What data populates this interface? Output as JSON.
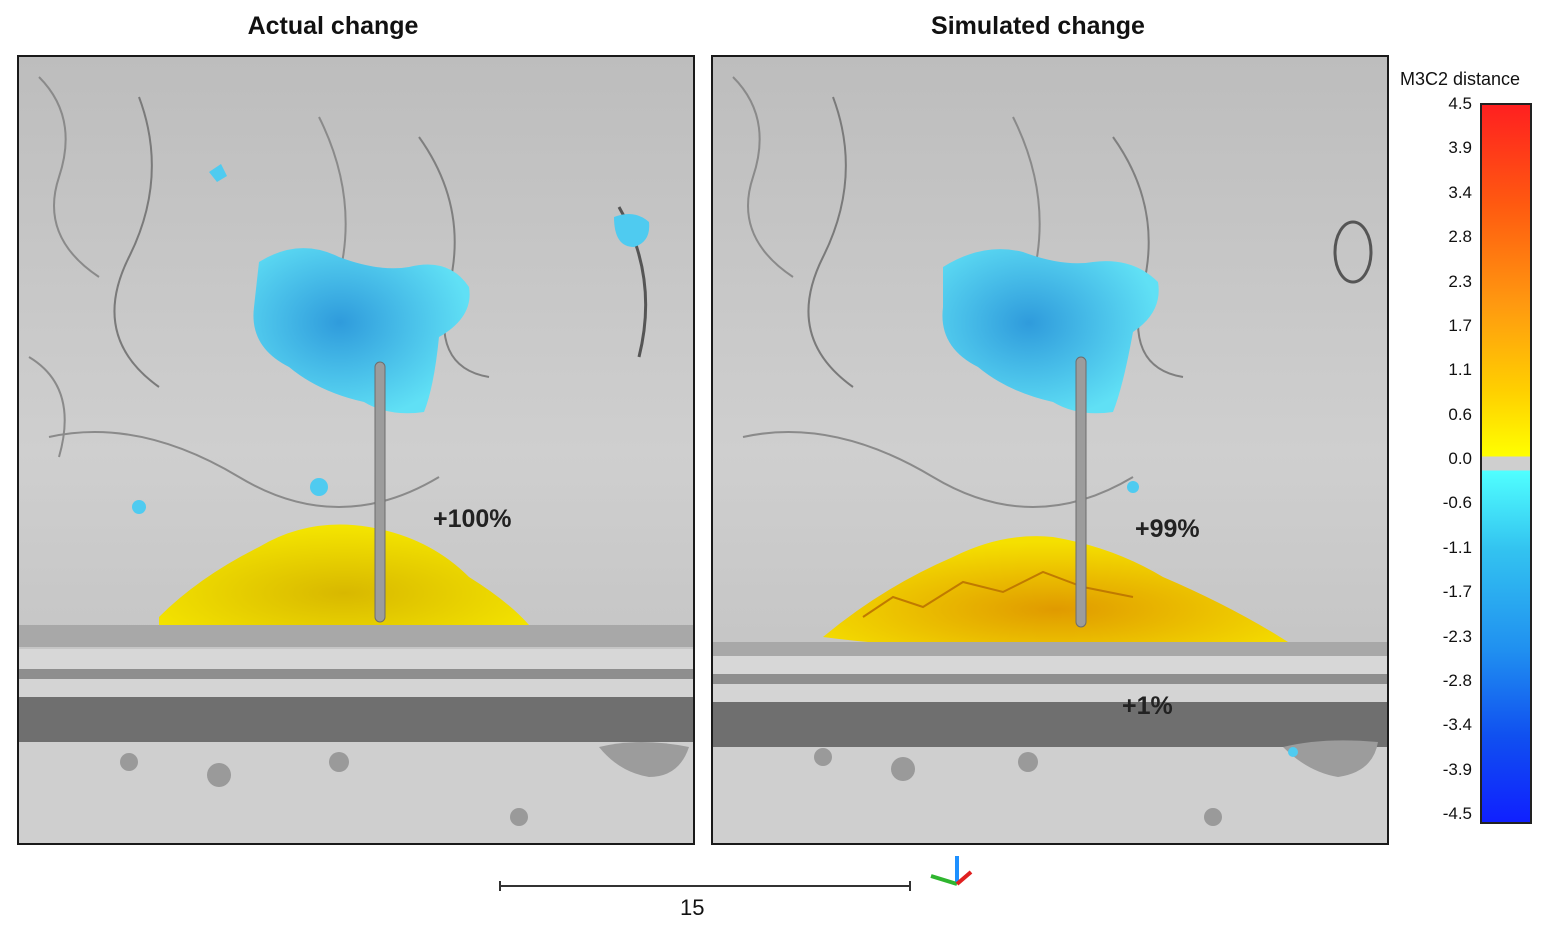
{
  "panels": [
    {
      "title": "Actual change",
      "annotations": [
        {
          "text": "+100%"
        }
      ]
    },
    {
      "title": "Simulated change",
      "annotations": [
        {
          "text": "+99%"
        },
        {
          "text": "+1%"
        }
      ]
    }
  ],
  "colorbar": {
    "title": "M3C2 distance",
    "ticks": [
      "4.5",
      "3.9",
      "3.4",
      "2.8",
      "2.3",
      "1.7",
      "1.1",
      "0.6",
      "0.0",
      "-0.6",
      "-1.1",
      "-1.7",
      "-2.3",
      "-2.8",
      "-3.4",
      "-3.9",
      "-4.5"
    ],
    "colors": {
      "max": "#ff2020",
      "zero": "#cfcfcf",
      "min": "#1020ff",
      "negative_start": "#50ffff",
      "positive_start": "#ffff00"
    }
  },
  "scale": {
    "label": "15"
  },
  "colors": {
    "surface": "#c9c9c9",
    "erosion": "#4fcbf0",
    "deposition": "#f2e000"
  }
}
